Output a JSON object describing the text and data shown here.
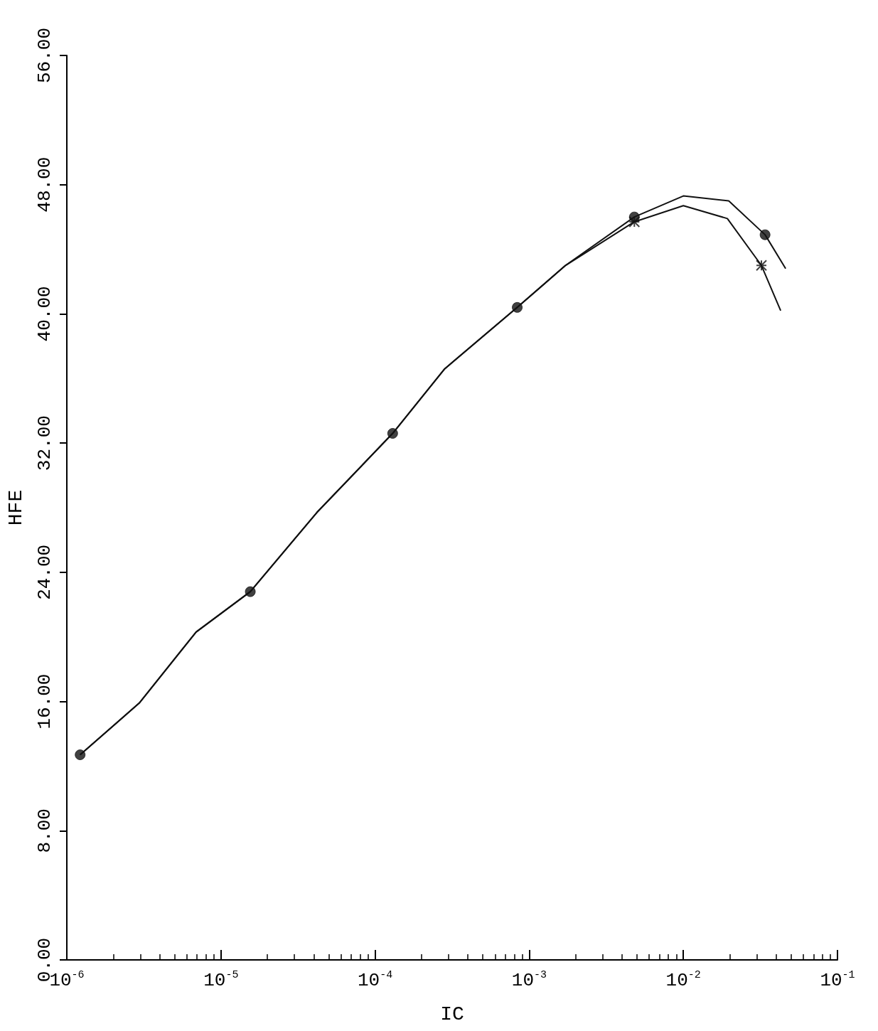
{
  "chart_data": {
    "type": "line",
    "xlabel": "IC",
    "ylabel": "HFE",
    "log": "x",
    "grid": false,
    "xlim": [
      1e-06,
      0.1
    ],
    "xticks": [
      {
        "value": 1e-06,
        "label": "10$^{-6}$"
      },
      {
        "value": 1e-05,
        "label": "10$^{-5}$"
      },
      {
        "value": 0.0001,
        "label": "10$^{-4}$"
      },
      {
        "value": 0.001,
        "label": "10$^{-3}$"
      },
      {
        "value": 0.01,
        "label": "10$^{-2}$"
      },
      {
        "value": 0.1,
        "label": "10$^{-1}$"
      }
    ],
    "ylim": [
      0,
      56
    ],
    "yticks": [
      {
        "value": 0,
        "label": "0.00"
      },
      {
        "value": 8,
        "label": "8.00"
      },
      {
        "value": 16,
        "label": "16.00"
      },
      {
        "value": 24,
        "label": "24.00"
      },
      {
        "value": 32,
        "label": "32.00"
      },
      {
        "value": 40,
        "label": "40.00"
      },
      {
        "value": 48,
        "label": "48.00"
      },
      {
        "value": 56,
        "label": "56.00"
      }
    ],
    "series": [
      {
        "color": "#111111",
        "marker": "none",
        "x": [
          1.22e-06,
          2.95e-06,
          6.9e-06,
          1.55e-05,
          4.19e-05,
          0.00013,
          0.000283,
          0.000836,
          0.00172,
          0.00481,
          0.01,
          0.0197,
          0.0339,
          0.0461
        ],
        "values": [
          12.7,
          15.9,
          20.3,
          22.8,
          27.7,
          32.6,
          36.6,
          40.4,
          43.0,
          46.0,
          47.3,
          47.0,
          44.9,
          42.8
        ]
      },
      {
        "color": "#111111",
        "marker": "none",
        "x": [
          1.22e-06,
          2.95e-06,
          6.9e-06,
          1.55e-05,
          4.19e-05,
          0.00013,
          0.000283,
          0.000836,
          0.00172,
          0.00481,
          0.01,
          0.0193,
          0.0321,
          0.0428
        ],
        "values": [
          12.7,
          15.9,
          20.3,
          22.8,
          27.7,
          32.6,
          36.6,
          40.4,
          43.0,
          45.7,
          46.7,
          45.9,
          43.0,
          40.2
        ]
      },
      {
        "type": "scatter",
        "color": "#111111",
        "marker": "circle",
        "x": [
          1.22e-06,
          1.55e-05,
          0.00013,
          0.000836,
          0.00481,
          0.0339
        ],
        "values": [
          12.7,
          22.8,
          32.6,
          40.4,
          46.0,
          44.9
        ]
      },
      {
        "type": "scatter",
        "color": "#111111",
        "marker": "cross",
        "x": [
          0.00481,
          0.0321
        ],
        "values": [
          45.7,
          43.0
        ]
      }
    ]
  }
}
